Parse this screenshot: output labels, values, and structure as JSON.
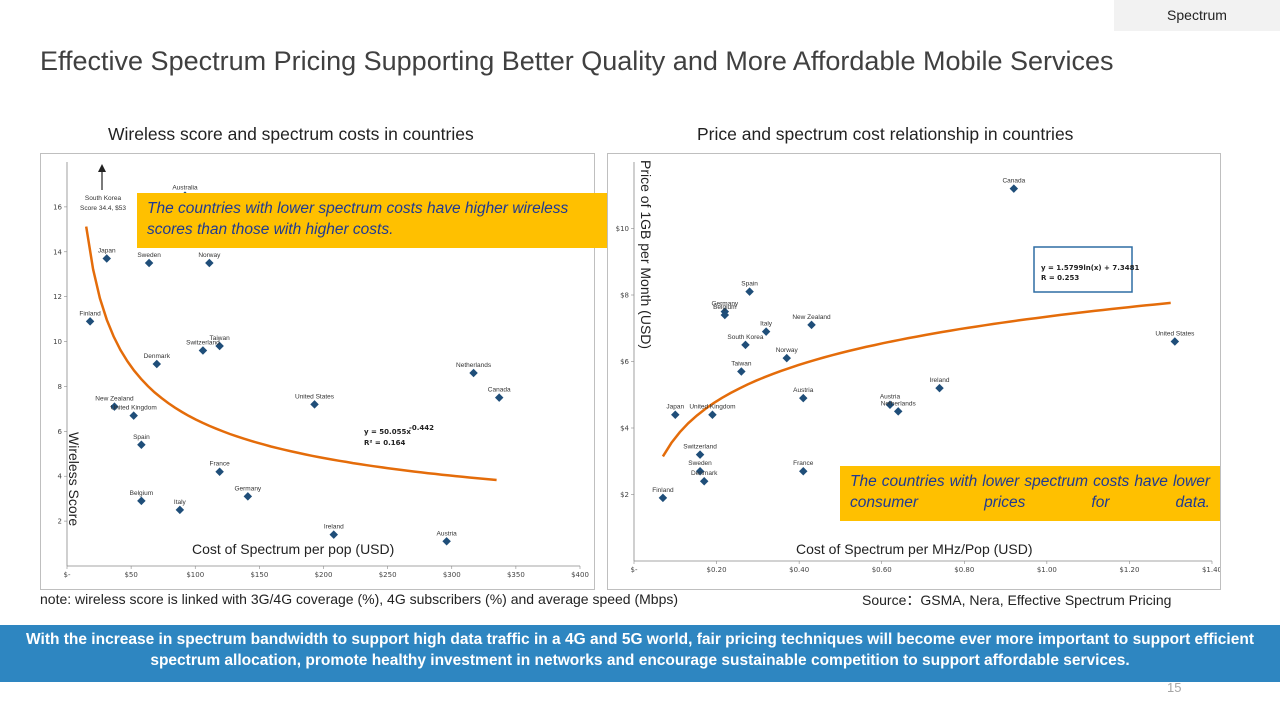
{
  "section_tab": "Spectrum",
  "title": "Effective Spectrum Pricing Supporting Better Quality and More Affordable Mobile Services",
  "colors": {
    "marker": "#1f4e79",
    "trend": "#e46c0a",
    "callout_bg": "#ffc000",
    "callout_text": "#1f3a93",
    "banner_bg": "#2e86c1"
  },
  "left_callout": "The countries with lower spectrum costs have higher wireless scores than those with higher costs.",
  "right_callout": "The countries with lower spectrum costs have lower consumer prices for data.",
  "note": "note: wireless score is linked with 3G/4G coverage (%), 4G subscribers (%) and average speed (Mbps)",
  "source": "Source：GSMA, Nera, Effective Spectrum Pricing",
  "banner": "With the increase in spectrum bandwidth to support high data traffic in a 4G and 5G world, fair pricing techniques will become ever more important to support efficient spectrum allocation, promote healthy investment in networks and encourage sustainable competition to support affordable services.",
  "page_number": "15",
  "chart_data": [
    {
      "type": "scatter",
      "title": "Wireless score and spectrum costs in countries",
      "xlabel": "Cost of Spectrum per pop (USD)",
      "ylabel": "Wireless Score",
      "xlim": [
        0,
        400
      ],
      "ylim": [
        0,
        18
      ],
      "x_ticks": [
        "$-",
        "$50",
        "$100",
        "$150",
        "$200",
        "$250",
        "$300",
        "$350",
        "$400"
      ],
      "y_ticks": [
        "2",
        "4",
        "6",
        "8",
        "10",
        "12",
        "14",
        "16"
      ],
      "annotation": "South Korea Score 34.4, $53",
      "equation": [
        "y = 50.055x",
        "-0.442",
        "R² = 0.164"
      ],
      "trend": {
        "form": "power",
        "a": 50.055,
        "b": -0.442,
        "x_range": [
          15,
          335
        ]
      },
      "points": [
        {
          "label": "Australia",
          "x": 92,
          "y": 16.5
        },
        {
          "label": "Japan",
          "x": 31,
          "y": 13.7
        },
        {
          "label": "Sweden",
          "x": 64,
          "y": 13.5
        },
        {
          "label": "Norway",
          "x": 111,
          "y": 13.5
        },
        {
          "label": "Finland",
          "x": 18,
          "y": 10.9
        },
        {
          "label": "Taiwan",
          "x": 119,
          "y": 9.8
        },
        {
          "label": "Switzerland",
          "x": 106,
          "y": 9.6
        },
        {
          "label": "Denmark",
          "x": 70,
          "y": 9.0
        },
        {
          "label": "Netherlands",
          "x": 317,
          "y": 8.6
        },
        {
          "label": "Canada",
          "x": 337,
          "y": 7.5
        },
        {
          "label": "United States",
          "x": 193,
          "y": 7.2
        },
        {
          "label": "New Zealand",
          "x": 37,
          "y": 7.1
        },
        {
          "label": "United Kingdom",
          "x": 52,
          "y": 6.7
        },
        {
          "label": "Spain",
          "x": 58,
          "y": 5.4
        },
        {
          "label": "France",
          "x": 119,
          "y": 4.2
        },
        {
          "label": "Germany",
          "x": 141,
          "y": 3.1
        },
        {
          "label": "Belgium",
          "x": 58,
          "y": 2.9
        },
        {
          "label": "Italy",
          "x": 88,
          "y": 2.5
        },
        {
          "label": "Ireland",
          "x": 208,
          "y": 1.4
        },
        {
          "label": "Austria",
          "x": 296,
          "y": 1.1
        }
      ]
    },
    {
      "type": "scatter",
      "title": "Price and spectrum cost relationship in countries",
      "xlabel": "Cost of Spectrum per MHz/Pop (USD)",
      "ylabel": "Price of 1GB per Month (USD)",
      "xlim": [
        0,
        1.4
      ],
      "ylim": [
        0,
        12
      ],
      "x_ticks": [
        "$-",
        "$0.20",
        "$0.40",
        "$0.60",
        "$0.80",
        "$1.00",
        "$1.20",
        "$1.40"
      ],
      "y_ticks": [
        "$2",
        "$4",
        "$6",
        "$8",
        "$10"
      ],
      "equation": [
        "y = 1.5799ln(x) + 7.3481",
        "R = 0.253"
      ],
      "trend": {
        "form": "log",
        "a": 1.5799,
        "b": 7.3481,
        "x_range": [
          0.07,
          1.3
        ]
      },
      "points": [
        {
          "label": "Canada",
          "x": 0.92,
          "y": 11.2
        },
        {
          "label": "Spain",
          "x": 0.28,
          "y": 8.1
        },
        {
          "label": "Germany",
          "x": 0.22,
          "y": 7.5
        },
        {
          "label": "Belgium",
          "x": 0.22,
          "y": 7.4
        },
        {
          "label": "Italy",
          "x": 0.32,
          "y": 6.9
        },
        {
          "label": "New Zealand",
          "x": 0.43,
          "y": 7.1
        },
        {
          "label": "South Korea",
          "x": 0.27,
          "y": 6.5
        },
        {
          "label": "Norway",
          "x": 0.37,
          "y": 6.1
        },
        {
          "label": "Taiwan",
          "x": 0.26,
          "y": 5.7
        },
        {
          "label": "United States",
          "x": 1.31,
          "y": 6.6
        },
        {
          "label": "Ireland",
          "x": 0.74,
          "y": 5.2
        },
        {
          "label": "Austria",
          "x": 0.41,
          "y": 4.9
        },
        {
          "label": "Austria",
          "x": 0.62,
          "y": 4.7
        },
        {
          "label": "Netherlands",
          "x": 0.64,
          "y": 4.5
        },
        {
          "label": "Japan",
          "x": 0.1,
          "y": 4.4
        },
        {
          "label": "United Kingdom",
          "x": 0.19,
          "y": 4.4
        },
        {
          "label": "Switzerland",
          "x": 0.16,
          "y": 3.2
        },
        {
          "label": "Sweden",
          "x": 0.16,
          "y": 2.7
        },
        {
          "label": "Denmark",
          "x": 0.17,
          "y": 2.4
        },
        {
          "label": "France",
          "x": 0.41,
          "y": 2.7
        },
        {
          "label": "Finland",
          "x": 0.07,
          "y": 1.9
        }
      ]
    }
  ]
}
